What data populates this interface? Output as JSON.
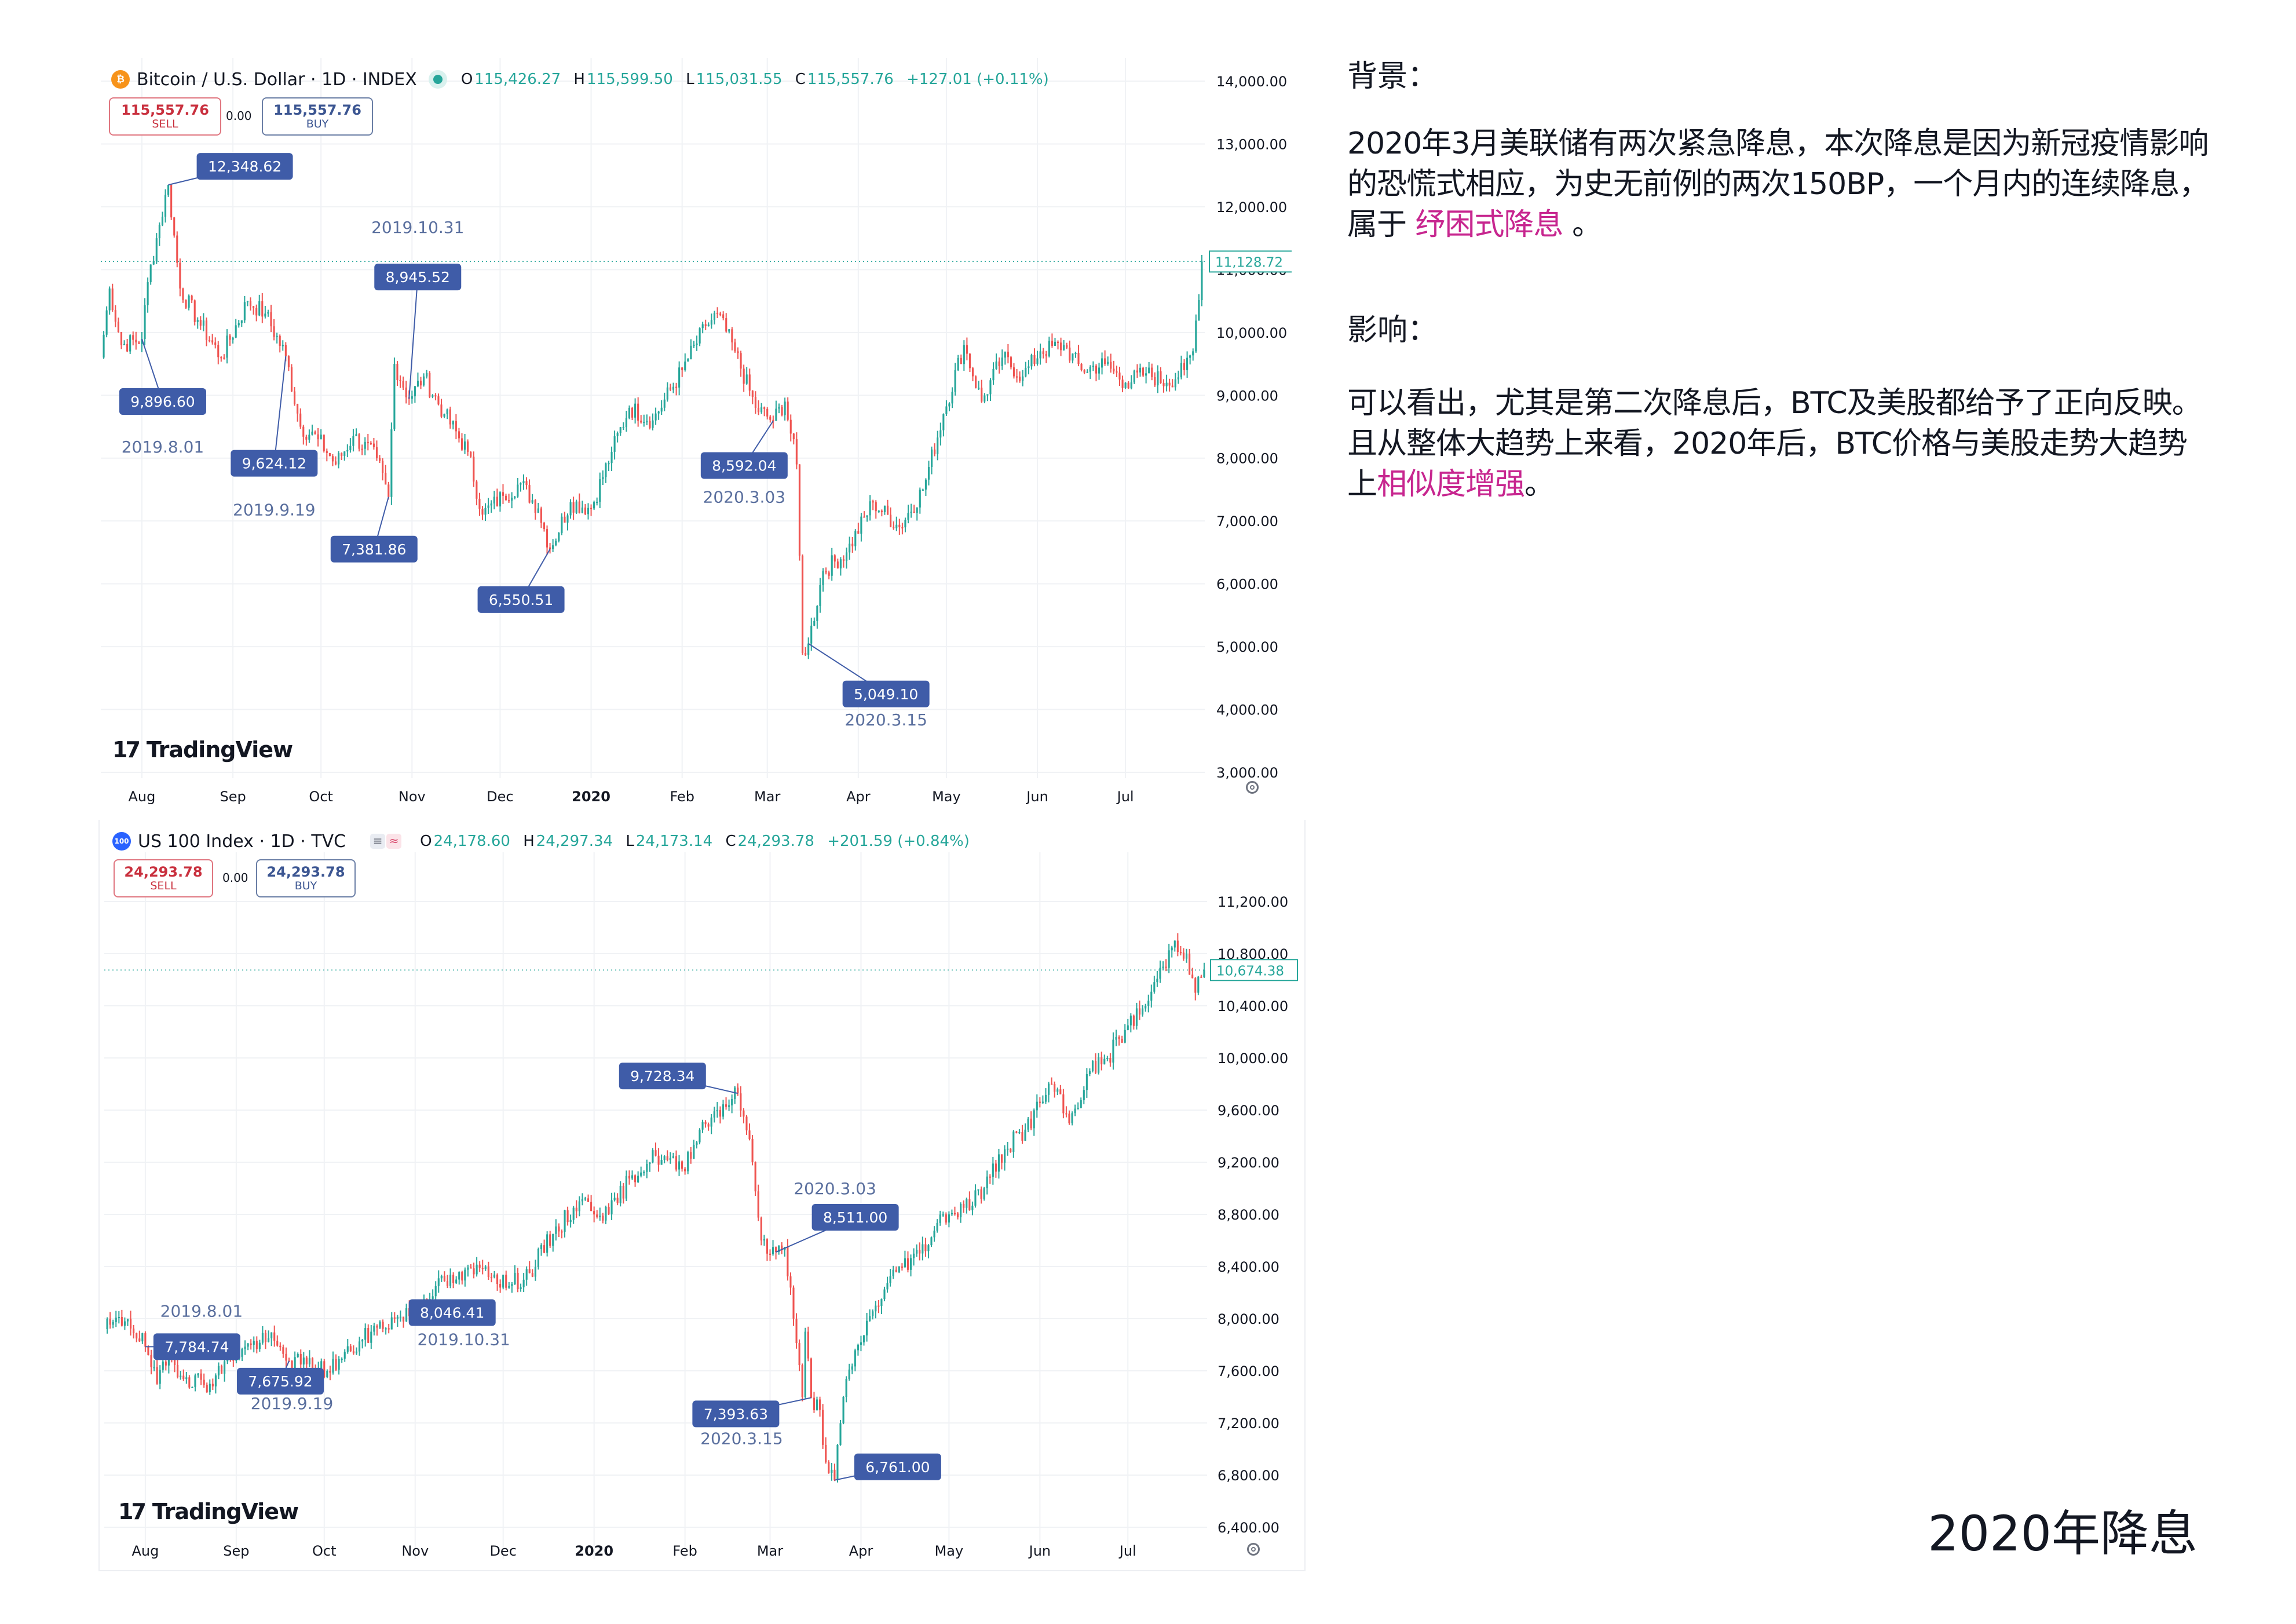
{
  "colors": {
    "up": "#26a69a",
    "down": "#ef5350",
    "callout_bg": "#3f5ca8",
    "callout_text": "#ffffff",
    "annotation_text": "#5a6f9e",
    "highlight": "#c7268f",
    "btc_icon": "#f7931a",
    "ndx_icon": "#2962ff"
  },
  "btc_panel": {
    "symbol_icon": "bitcoin-icon",
    "title": "Bitcoin / U.S. Dollar · 1D · INDEX",
    "ohlc": {
      "o_label": "O",
      "o": "115,426.27",
      "h_label": "H",
      "h": "115,599.50",
      "l_label": "L",
      "l": "115,031.55",
      "c_label": "C",
      "c": "115,557.76",
      "change": "+127.01 (+0.11%)"
    },
    "sell": {
      "price": "115,557.76",
      "label": "SELL"
    },
    "buy": {
      "price": "115,557.76",
      "label": "BUY"
    },
    "spread": "0.00",
    "logo_text": "TradingView"
  },
  "ndx_panel": {
    "symbol_icon_text": "100",
    "title": "US 100 Index · 1D · TVC",
    "ohlc": {
      "o_label": "O",
      "o": "24,178.60",
      "h_label": "H",
      "h": "24,297.34",
      "l_label": "L",
      "l": "24,173.14",
      "c_label": "C",
      "c": "24,293.78",
      "change": "+201.59 (+0.84%)"
    },
    "sell": {
      "price": "24,293.78",
      "label": "SELL"
    },
    "buy": {
      "price": "24,293.78",
      "label": "BUY"
    },
    "spread": "0.00",
    "tag1": "≡",
    "tag2": "≈",
    "logo_text": "TradingView"
  },
  "chart_data": [
    {
      "type": "candlestick",
      "symbol": "BTC/USD",
      "ylim": [
        3000,
        14000
      ],
      "y_ticks": [
        "3,000.00",
        "4,000.00",
        "5,000.00",
        "6,000.00",
        "7,000.00",
        "8,000.00",
        "9,000.00",
        "10,000.00",
        "11,000.00",
        "12,000.00",
        "13,000.00",
        "14,000.00"
      ],
      "x_ticks": [
        {
          "label": "Aug",
          "date": "2019-08-01"
        },
        {
          "label": "Sep",
          "date": "2019-09-01"
        },
        {
          "label": "Oct",
          "date": "2019-10-01"
        },
        {
          "label": "Nov",
          "date": "2019-11-01"
        },
        {
          "label": "Dec",
          "date": "2019-12-01"
        },
        {
          "label": "2020",
          "date": "2020-01-01",
          "bold": true
        },
        {
          "label": "Feb",
          "date": "2020-02-01"
        },
        {
          "label": "Mar",
          "date": "2020-03-01"
        },
        {
          "label": "Apr",
          "date": "2020-04-01"
        },
        {
          "label": "May",
          "date": "2020-05-01"
        },
        {
          "label": "Jun",
          "date": "2020-06-01"
        },
        {
          "label": "Jul",
          "date": "2020-07-01"
        }
      ],
      "x_range": [
        "2019-07-18",
        "2020-07-28"
      ],
      "last_price": {
        "value": 11128.72,
        "label": "11,128.72"
      },
      "path": [
        [
          "2019-07-18",
          9600
        ],
        [
          "2019-07-21",
          10700
        ],
        [
          "2019-07-25",
          9800
        ],
        [
          "2019-08-01",
          9896.6
        ],
        [
          "2019-08-03",
          10800
        ],
        [
          "2019-08-06",
          11500
        ],
        [
          "2019-08-10",
          12348.62
        ],
        [
          "2019-08-14",
          10700
        ],
        [
          "2019-08-20",
          10200
        ],
        [
          "2019-08-28",
          9600
        ],
        [
          "2019-09-06",
          10500
        ],
        [
          "2019-09-12",
          10300
        ],
        [
          "2019-09-19",
          9624.12
        ],
        [
          "2019-09-24",
          8500
        ],
        [
          "2019-09-30",
          8300
        ],
        [
          "2019-10-06",
          7900
        ],
        [
          "2019-10-12",
          8350
        ],
        [
          "2019-10-20",
          8000
        ],
        [
          "2019-10-24",
          7381.86
        ],
        [
          "2019-10-26",
          9500
        ],
        [
          "2019-10-31",
          8945.52
        ],
        [
          "2019-11-05",
          9300
        ],
        [
          "2019-11-12",
          8700
        ],
        [
          "2019-11-20",
          8100
        ],
        [
          "2019-11-25",
          7100
        ],
        [
          "2019-12-02",
          7400
        ],
        [
          "2019-12-08",
          7600
        ],
        [
          "2019-12-14",
          7200
        ],
        [
          "2019-12-18",
          6550.51
        ],
        [
          "2019-12-25",
          7300
        ],
        [
          "2020-01-01",
          7200
        ],
        [
          "2020-01-08",
          8100
        ],
        [
          "2020-01-14",
          8800
        ],
        [
          "2020-01-22",
          8600
        ],
        [
          "2020-02-01",
          9400
        ],
        [
          "2020-02-09",
          10100
        ],
        [
          "2020-02-13",
          10300
        ],
        [
          "2020-02-19",
          9700
        ],
        [
          "2020-02-26",
          8800
        ],
        [
          "2020-03-03",
          8592.04
        ],
        [
          "2020-03-07",
          8900
        ],
        [
          "2020-03-11",
          7900
        ],
        [
          "2020-03-13",
          4900
        ],
        [
          "2020-03-15",
          5049.1
        ],
        [
          "2020-03-20",
          6200
        ],
        [
          "2020-03-28",
          6500
        ],
        [
          "2020-04-06",
          7300
        ],
        [
          "2020-04-15",
          6900
        ],
        [
          "2020-04-23",
          7500
        ],
        [
          "2020-04-30",
          8700
        ],
        [
          "2020-05-07",
          9800
        ],
        [
          "2020-05-13",
          8900
        ],
        [
          "2020-05-20",
          9600
        ],
        [
          "2020-05-27",
          9300
        ],
        [
          "2020-06-02",
          9700
        ],
        [
          "2020-06-10",
          9800
        ],
        [
          "2020-06-16",
          9400
        ],
        [
          "2020-06-24",
          9500
        ],
        [
          "2020-07-01",
          9200
        ],
        [
          "2020-07-08",
          9350
        ],
        [
          "2020-07-15",
          9200
        ],
        [
          "2020-07-21",
          9400
        ],
        [
          "2020-07-24",
          9700
        ],
        [
          "2020-07-27",
          11128.72
        ]
      ],
      "labels": [
        {
          "date": "2019-08-10",
          "value": 12348.62,
          "text": "12,348.62"
        },
        {
          "date": "2019-08-01",
          "value": 9896.6,
          "text": "9,896.60",
          "date_text": "2019.8.01"
        },
        {
          "date": "2019-09-19",
          "value": 9624.12,
          "text": "9,624.12",
          "date_text": "2019.9.19"
        },
        {
          "date": "2019-10-24",
          "value": 7381.86,
          "text": "7,381.86"
        },
        {
          "date": "2019-10-31",
          "value": 8945.52,
          "text": "8,945.52",
          "date_text": "2019.10.31"
        },
        {
          "date": "2019-12-18",
          "value": 6550.51,
          "text": "6,550.51"
        },
        {
          "date": "2020-03-03",
          "value": 8592.04,
          "text": "8,592.04",
          "date_text": "2020.3.03"
        },
        {
          "date": "2020-03-15",
          "value": 5049.1,
          "text": "5,049.10",
          "date_text": "2020.3.15"
        }
      ]
    },
    {
      "type": "candlestick",
      "symbol": "US 100 Index",
      "ylim": [
        6200,
        11400
      ],
      "y_ticks": [
        "6,400.00",
        "6,800.00",
        "7,200.00",
        "7,600.00",
        "8,000.00",
        "8,400.00",
        "8,800.00",
        "9,200.00",
        "9,600.00",
        "10,000.00",
        "10,400.00",
        "10,800.00",
        "11,200.00"
      ],
      "x_ticks": [
        {
          "label": "Aug",
          "date": "2019-08-01"
        },
        {
          "label": "Sep",
          "date": "2019-09-01"
        },
        {
          "label": "Oct",
          "date": "2019-10-01"
        },
        {
          "label": "Nov",
          "date": "2019-11-01"
        },
        {
          "label": "Dec",
          "date": "2019-12-01"
        },
        {
          "label": "2020",
          "date": "2020-01-01",
          "bold": true
        },
        {
          "label": "Feb",
          "date": "2020-02-01"
        },
        {
          "label": "Mar",
          "date": "2020-03-01"
        },
        {
          "label": "Apr",
          "date": "2020-04-01"
        },
        {
          "label": "May",
          "date": "2020-05-01"
        },
        {
          "label": "Jun",
          "date": "2020-06-01"
        },
        {
          "label": "Jul",
          "date": "2020-07-01"
        }
      ],
      "x_range": [
        "2019-07-18",
        "2020-07-28"
      ],
      "last_price": {
        "value": 10674.38,
        "label": "10,674.38"
      },
      "path": [
        [
          "2019-07-18",
          7920
        ],
        [
          "2019-07-26",
          8000
        ],
        [
          "2019-08-01",
          7784.74
        ],
        [
          "2019-08-05",
          7500
        ],
        [
          "2019-08-09",
          7700
        ],
        [
          "2019-08-15",
          7550
        ],
        [
          "2019-08-23",
          7500
        ],
        [
          "2019-08-30",
          7700
        ],
        [
          "2019-09-06",
          7800
        ],
        [
          "2019-09-12",
          7850
        ],
        [
          "2019-09-19",
          7675.92
        ],
        [
          "2019-09-25",
          7650
        ],
        [
          "2019-10-02",
          7600
        ],
        [
          "2019-10-10",
          7750
        ],
        [
          "2019-10-17",
          7900
        ],
        [
          "2019-10-25",
          8000
        ],
        [
          "2019-10-31",
          8046.41
        ],
        [
          "2019-11-08",
          8250
        ],
        [
          "2019-11-15",
          8300
        ],
        [
          "2019-11-25",
          8400
        ],
        [
          "2019-12-03",
          8250
        ],
        [
          "2019-12-10",
          8350
        ],
        [
          "2019-12-18",
          8650
        ],
        [
          "2019-12-27",
          8900
        ],
        [
          "2020-01-06",
          8800
        ],
        [
          "2020-01-14",
          9100
        ],
        [
          "2020-01-22",
          9250
        ],
        [
          "2020-01-31",
          9150
        ],
        [
          "2020-02-06",
          9450
        ],
        [
          "2020-02-12",
          9600
        ],
        [
          "2020-02-19",
          9728.34
        ],
        [
          "2020-02-21",
          9550
        ],
        [
          "2020-02-24",
          9200
        ],
        [
          "2020-02-27",
          8600
        ],
        [
          "2020-03-03",
          8511
        ],
        [
          "2020-03-06",
          8550
        ],
        [
          "2020-03-09",
          8000
        ],
        [
          "2020-03-12",
          7400
        ],
        [
          "2020-03-13",
          7900
        ],
        [
          "2020-03-15",
          7393.63
        ],
        [
          "2020-03-18",
          7300
        ],
        [
          "2020-03-20",
          6900
        ],
        [
          "2020-03-23",
          6761
        ],
        [
          "2020-03-26",
          7400
        ],
        [
          "2020-03-31",
          7800
        ],
        [
          "2020-04-06",
          8100
        ],
        [
          "2020-04-14",
          8400
        ],
        [
          "2020-04-21",
          8500
        ],
        [
          "2020-04-29",
          8800
        ],
        [
          "2020-05-06",
          8850
        ],
        [
          "2020-05-13",
          9000
        ],
        [
          "2020-05-20",
          9300
        ],
        [
          "2020-05-27",
          9450
        ],
        [
          "2020-06-05",
          9800
        ],
        [
          "2020-06-11",
          9500
        ],
        [
          "2020-06-18",
          9900
        ],
        [
          "2020-06-24",
          10000
        ],
        [
          "2020-07-01",
          10250
        ],
        [
          "2020-07-07",
          10400
        ],
        [
          "2020-07-13",
          10700
        ],
        [
          "2020-07-17",
          10900
        ],
        [
          "2020-07-21",
          10800
        ],
        [
          "2020-07-24",
          10500
        ],
        [
          "2020-07-27",
          10674.38
        ]
      ],
      "labels": [
        {
          "date": "2019-08-01",
          "value": 7784.74,
          "text": "7,784.74",
          "date_text": "2019.8.01"
        },
        {
          "date": "2019-09-19",
          "value": 7675.92,
          "text": "7,675.92",
          "date_text": "2019.9.19"
        },
        {
          "date": "2019-10-31",
          "value": 8046.41,
          "text": "8,046.41",
          "date_text": "2019.10.31"
        },
        {
          "date": "2020-02-19",
          "value": 9728.34,
          "text": "9,728.34"
        },
        {
          "date": "2020-03-03",
          "value": 8511,
          "text": "8,511.00",
          "date_text": "2020.3.03"
        },
        {
          "date": "2020-03-15",
          "value": 7393.63,
          "text": "7,393.63",
          "date_text": "2020.3.15"
        },
        {
          "date": "2020-03-23",
          "value": 6761,
          "text": "6,761.00"
        }
      ]
    }
  ],
  "side": {
    "background_title": "背景：",
    "background_body_1": "2020年3月美联储有两次紧急降息，本次降息是因为新冠疫情影响的恐慌式相应，为史无前例的两次150BP，一个月内的连续降息，属于 ",
    "background_highlight": "纾困式降息",
    "background_body_2": " 。",
    "impact_title": "影响：",
    "impact_body_1": "可以看出，尤其是第二次降息后，BTC及美股都给予了正向反映。且从整体大趋势上来看，2020年后，BTC价格与美股走势大趋势上",
    "impact_highlight": "相似度增强",
    "impact_body_2": "。"
  },
  "slide_title": "2020年降息"
}
